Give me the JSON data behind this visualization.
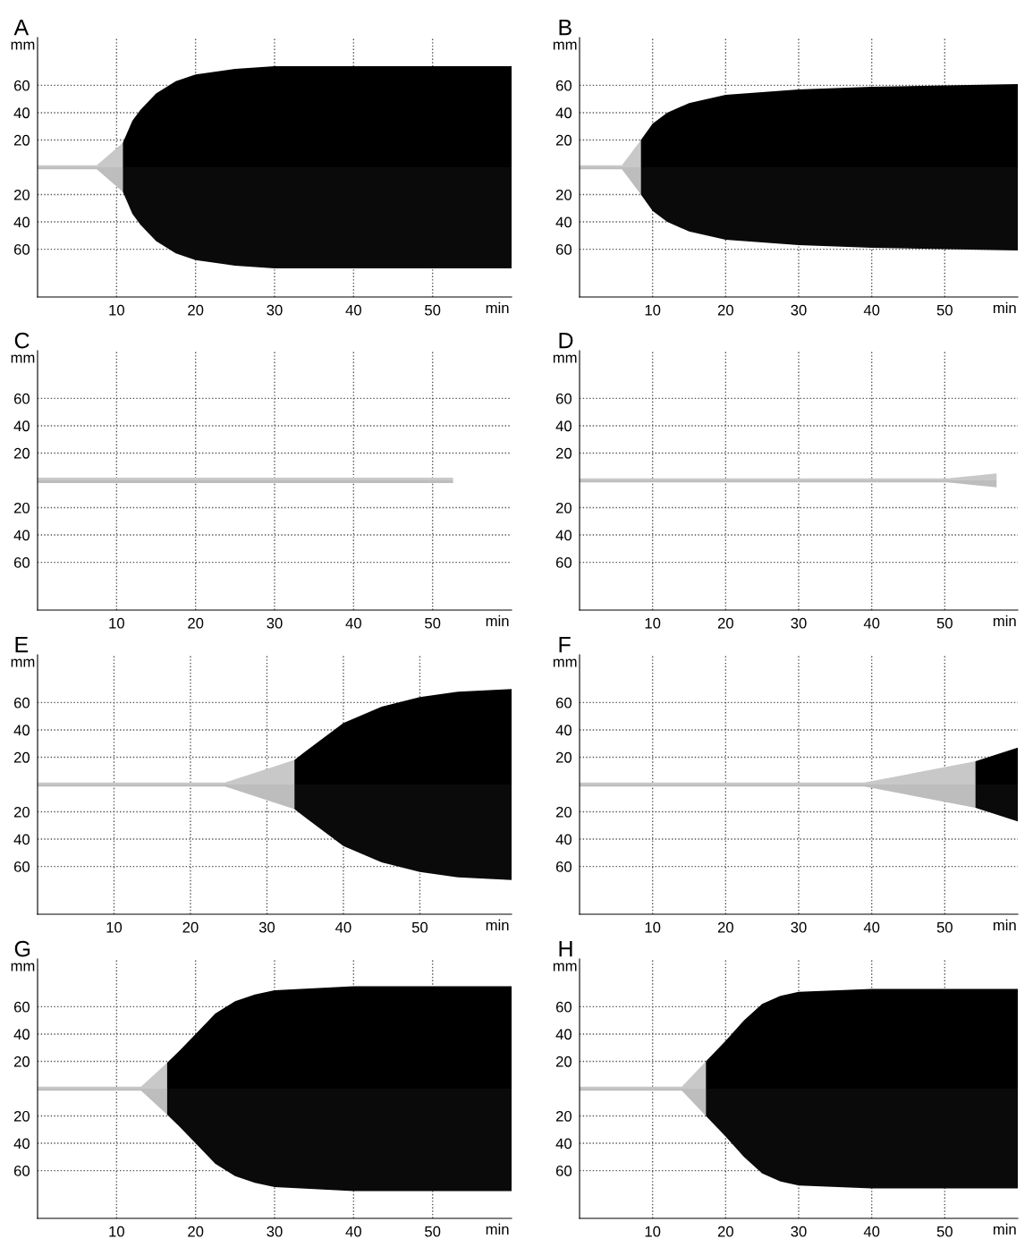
{
  "chart_data": [
    {
      "type": "area",
      "title": "A",
      "xlabel": "min",
      "ylabel": "mm",
      "xlim": [
        0,
        60
      ],
      "ylim": [
        -95,
        95
      ],
      "xticks": [
        10,
        20,
        30,
        40,
        50
      ],
      "yticks": [
        {
          "value": 60,
          "label": "60"
        },
        {
          "value": 40,
          "label": "40"
        },
        {
          "value": 20,
          "label": "20"
        },
        {
          "value": -20,
          "label": "20"
        },
        {
          "value": -40,
          "label": "40"
        },
        {
          "value": -60,
          "label": "60"
        }
      ],
      "grid": true,
      "series": [
        {
          "color": "#c8c8c8",
          "x": [
            0,
            7.5,
            10.8
          ],
          "values": [
            1.5,
            1.5,
            18
          ]
        },
        {
          "color": "#bdbdbd",
          "x": [
            0,
            7.5,
            10.8
          ],
          "values": [
            -1.5,
            -1.5,
            -18
          ]
        },
        {
          "color": "#000000",
          "x": [
            10.8,
            12,
            13,
            15,
            17.5,
            20,
            25,
            30,
            40,
            50,
            60
          ],
          "values": [
            18,
            34,
            42,
            54,
            63,
            68,
            72,
            74,
            74,
            74,
            74
          ]
        },
        {
          "color": "#0a0a0a",
          "x": [
            10.8,
            12,
            13,
            15,
            17.5,
            20,
            25,
            30,
            40,
            50,
            60
          ],
          "values": [
            -18,
            -34,
            -42,
            -54,
            -63,
            -68,
            -72,
            -74,
            -74,
            -74,
            -74
          ]
        }
      ]
    },
    {
      "type": "area",
      "title": "B",
      "xlabel": "min",
      "ylabel": "mm",
      "xlim": [
        0,
        60
      ],
      "ylim": [
        -95,
        95
      ],
      "xticks": [
        10,
        20,
        30,
        40,
        50
      ],
      "yticks": [
        {
          "value": 60,
          "label": "60"
        },
        {
          "value": 40,
          "label": "40"
        },
        {
          "value": 20,
          "label": "20"
        },
        {
          "value": -20,
          "label": "20"
        },
        {
          "value": -40,
          "label": "40"
        },
        {
          "value": -60,
          "label": "60"
        }
      ],
      "grid": true,
      "series": [
        {
          "color": "#c8c8c8",
          "x": [
            0,
            5.8,
            8.4
          ],
          "values": [
            1.5,
            1.5,
            20
          ]
        },
        {
          "color": "#bdbdbd",
          "x": [
            0,
            5.8,
            8.4
          ],
          "values": [
            -1.5,
            -1.5,
            -20
          ]
        },
        {
          "color": "#000000",
          "x": [
            8.4,
            10,
            12,
            15,
            20,
            30,
            40,
            50,
            60
          ],
          "values": [
            20,
            32,
            40,
            47,
            53,
            57,
            59,
            60,
            61
          ]
        },
        {
          "color": "#0a0a0a",
          "x": [
            8.4,
            10,
            12,
            15,
            20,
            30,
            40,
            50,
            60
          ],
          "values": [
            -20,
            -32,
            -40,
            -47,
            -53,
            -57,
            -59,
            -60,
            -61
          ]
        }
      ]
    },
    {
      "type": "area",
      "title": "C",
      "xlabel": "min",
      "ylabel": "mm",
      "xlim": [
        0,
        60
      ],
      "ylim": [
        -95,
        95
      ],
      "xticks": [
        10,
        20,
        30,
        40,
        50
      ],
      "yticks": [
        {
          "value": 60,
          "label": "60"
        },
        {
          "value": 40,
          "label": "40"
        },
        {
          "value": 20,
          "label": "20"
        },
        {
          "value": -20,
          "label": "20"
        },
        {
          "value": -40,
          "label": "40"
        },
        {
          "value": -60,
          "label": "60"
        }
      ],
      "grid": true,
      "series": [
        {
          "color": "#c8c8c8",
          "x": [
            0,
            52.6
          ],
          "values": [
            2,
            2
          ]
        },
        {
          "color": "#bdbdbd",
          "x": [
            0,
            52.6
          ],
          "values": [
            -2,
            -2
          ]
        }
      ]
    },
    {
      "type": "area",
      "title": "D",
      "xlabel": "min",
      "ylabel": "mm",
      "xlim": [
        0,
        60
      ],
      "ylim": [
        -95,
        95
      ],
      "xticks": [
        10,
        20,
        30,
        40,
        50
      ],
      "yticks": [
        {
          "value": 60,
          "label": "60"
        },
        {
          "value": 40,
          "label": "40"
        },
        {
          "value": 20,
          "label": "20"
        },
        {
          "value": -20,
          "label": "20"
        },
        {
          "value": -40,
          "label": "40"
        },
        {
          "value": -60,
          "label": "60"
        }
      ],
      "grid": true,
      "series": [
        {
          "color": "#c8c8c8",
          "x": [
            0,
            50.4,
            57.1
          ],
          "values": [
            1.5,
            1.5,
            5
          ]
        },
        {
          "color": "#bdbdbd",
          "x": [
            0,
            50.4,
            57.1
          ],
          "values": [
            -1.5,
            -1.5,
            -5
          ]
        }
      ]
    },
    {
      "type": "area",
      "title": "E",
      "xlabel": "min",
      "ylabel": "mm",
      "xlim": [
        0,
        62
      ],
      "ylim": [
        -95,
        95
      ],
      "xticks": [
        10,
        20,
        30,
        40,
        50
      ],
      "yticks": [
        {
          "value": 60,
          "label": "60"
        },
        {
          "value": 40,
          "label": "40"
        },
        {
          "value": 20,
          "label": "20"
        },
        {
          "value": -20,
          "label": "20"
        },
        {
          "value": -40,
          "label": "40"
        },
        {
          "value": -60,
          "label": "60"
        }
      ],
      "grid": true,
      "series": [
        {
          "color": "#c8c8c8",
          "x": [
            0,
            24.5,
            33.6
          ],
          "values": [
            1.5,
            1.5,
            18
          ]
        },
        {
          "color": "#bdbdbd",
          "x": [
            0,
            24.5,
            33.6
          ],
          "values": [
            -1.5,
            -1.5,
            -18
          ]
        },
        {
          "color": "#000000",
          "x": [
            33.6,
            35,
            40,
            45,
            50,
            55,
            62
          ],
          "values": [
            18,
            24,
            45,
            57,
            64,
            68,
            70
          ]
        },
        {
          "color": "#0a0a0a",
          "x": [
            33.6,
            35,
            40,
            45,
            50,
            55,
            62
          ],
          "values": [
            -18,
            -24,
            -45,
            -57,
            -64,
            -68,
            -70
          ]
        }
      ]
    },
    {
      "type": "area",
      "title": "F",
      "xlabel": "min",
      "ylabel": "mm",
      "xlim": [
        0,
        60
      ],
      "ylim": [
        -95,
        95
      ],
      "xticks": [
        10,
        20,
        30,
        40,
        50
      ],
      "yticks": [
        {
          "value": 60,
          "label": "60"
        },
        {
          "value": 40,
          "label": "40"
        },
        {
          "value": 20,
          "label": "20"
        },
        {
          "value": -20,
          "label": "20"
        },
        {
          "value": -40,
          "label": "40"
        },
        {
          "value": -60,
          "label": "60"
        }
      ],
      "grid": true,
      "series": [
        {
          "color": "#c8c8c8",
          "x": [
            0,
            39,
            54.2
          ],
          "values": [
            1.5,
            1.5,
            17
          ]
        },
        {
          "color": "#bdbdbd",
          "x": [
            0,
            39,
            54.2
          ],
          "values": [
            -1.5,
            -1.5,
            -17
          ]
        },
        {
          "color": "#000000",
          "x": [
            54.2,
            60
          ],
          "values": [
            17,
            27
          ]
        },
        {
          "color": "#0a0a0a",
          "x": [
            54.2,
            60
          ],
          "values": [
            -17,
            -27
          ]
        }
      ]
    },
    {
      "type": "area",
      "title": "G",
      "xlabel": "min",
      "ylabel": "mm",
      "xlim": [
        0,
        60
      ],
      "ylim": [
        -95,
        95
      ],
      "xticks": [
        10,
        20,
        30,
        40,
        50
      ],
      "yticks": [
        {
          "value": 60,
          "label": "60"
        },
        {
          "value": 40,
          "label": "40"
        },
        {
          "value": 20,
          "label": "20"
        },
        {
          "value": -20,
          "label": "20"
        },
        {
          "value": -40,
          "label": "40"
        },
        {
          "value": -60,
          "label": "60"
        }
      ],
      "grid": true,
      "series": [
        {
          "color": "#c8c8c8",
          "x": [
            0,
            13.1,
            16.4
          ],
          "values": [
            1.5,
            1.5,
            19
          ]
        },
        {
          "color": "#bdbdbd",
          "x": [
            0,
            13.1,
            16.4
          ],
          "values": [
            -1.5,
            -1.5,
            -19
          ]
        },
        {
          "color": "#000000",
          "x": [
            16.4,
            18,
            20,
            22.5,
            25,
            27.5,
            30,
            40,
            50,
            60
          ],
          "values": [
            19,
            28,
            40,
            55,
            64,
            69,
            72,
            75,
            75,
            75
          ]
        },
        {
          "color": "#0a0a0a",
          "x": [
            16.4,
            18,
            20,
            22.5,
            25,
            27.5,
            30,
            40,
            50,
            60
          ],
          "values": [
            -19,
            -28,
            -40,
            -55,
            -64,
            -69,
            -72,
            -75,
            -75,
            -75
          ]
        }
      ]
    },
    {
      "type": "area",
      "title": "H",
      "xlabel": "min",
      "ylabel": "mm",
      "xlim": [
        0,
        60
      ],
      "ylim": [
        -95,
        95
      ],
      "xticks": [
        10,
        20,
        30,
        40,
        50
      ],
      "yticks": [
        {
          "value": 60,
          "label": "60"
        },
        {
          "value": 40,
          "label": "40"
        },
        {
          "value": 20,
          "label": "20"
        },
        {
          "value": -20,
          "label": "20"
        },
        {
          "value": -40,
          "label": "40"
        },
        {
          "value": -60,
          "label": "60"
        }
      ],
      "grid": true,
      "series": [
        {
          "color": "#c8c8c8",
          "x": [
            0,
            14,
            17.3
          ],
          "values": [
            1.5,
            1.5,
            20
          ]
        },
        {
          "color": "#bdbdbd",
          "x": [
            0,
            14,
            17.3
          ],
          "values": [
            -1.5,
            -1.5,
            -20
          ]
        },
        {
          "color": "#000000",
          "x": [
            17.3,
            20,
            22.5,
            25,
            27.5,
            30,
            40,
            50,
            60
          ],
          "values": [
            20,
            35,
            50,
            62,
            68,
            71,
            73,
            73,
            73
          ]
        },
        {
          "color": "#0a0a0a",
          "x": [
            17.3,
            20,
            22.5,
            25,
            27.5,
            30,
            40,
            50,
            60
          ],
          "values": [
            -20,
            -35,
            -50,
            -62,
            -68,
            -71,
            -73,
            -73,
            -73
          ]
        }
      ]
    }
  ]
}
